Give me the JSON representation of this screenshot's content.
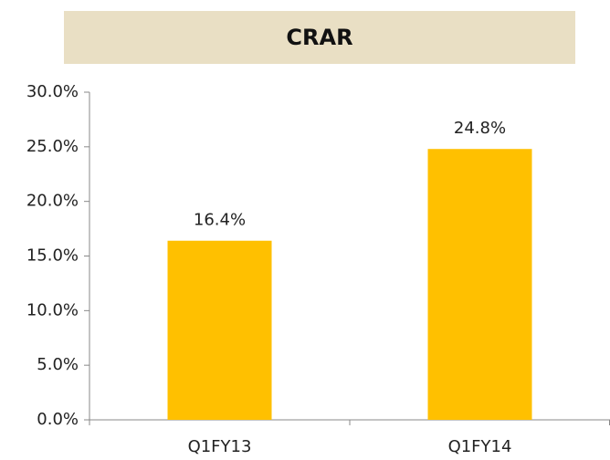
{
  "chart_data": {
    "type": "bar",
    "title": "CRAR",
    "categories": [
      "Q1FY13",
      "Q1FY14"
    ],
    "values": [
      16.4,
      24.8
    ],
    "value_labels": [
      "16.4%",
      "24.8%"
    ],
    "color": "#ffc000",
    "ylim": [
      0,
      30
    ],
    "yticks": [
      {
        "value": 0,
        "label": "0.0%"
      },
      {
        "value": 5,
        "label": "5.0%"
      },
      {
        "value": 10,
        "label": "10.0%"
      },
      {
        "value": 15,
        "label": "15.0%"
      },
      {
        "value": 20,
        "label": "20.0%"
      },
      {
        "value": 25,
        "label": "25.0%"
      },
      {
        "value": 30,
        "label": "30.0%"
      }
    ],
    "grid": false
  }
}
